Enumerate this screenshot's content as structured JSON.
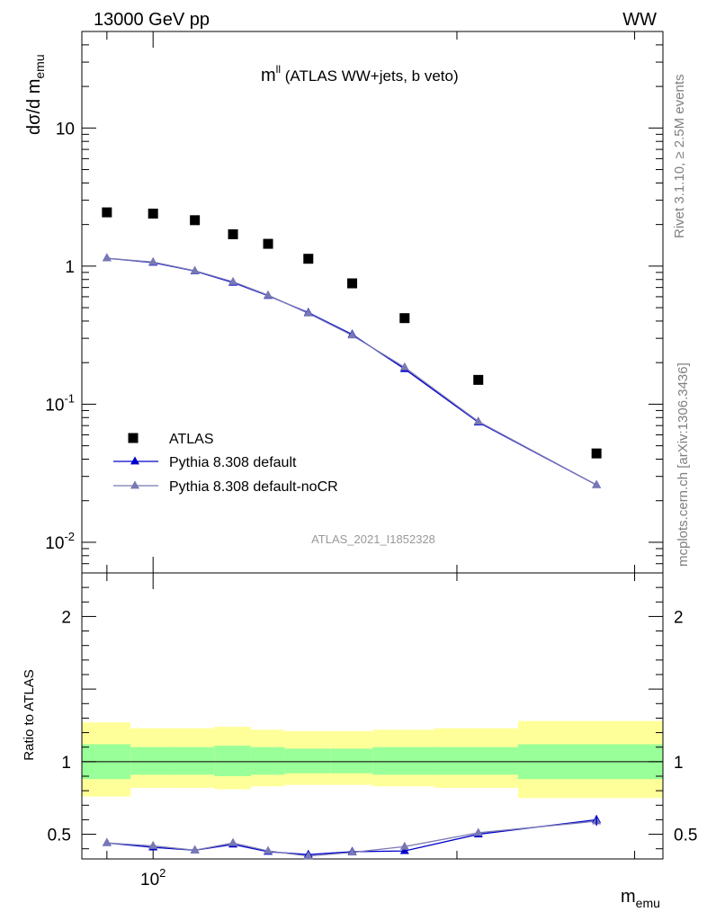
{
  "header": {
    "left": "13000 GeV pp",
    "right": "WW"
  },
  "plot_title": {
    "main": "m",
    "sup": "ll",
    "rest": " (ATLAS WW+jets, b veto)"
  },
  "ylabel": {
    "main": "dσ/d m",
    "sub": "emu"
  },
  "xlabel": {
    "main": "m",
    "sub": "emu"
  },
  "ratio_ylabel": "Ratio to ATLAS",
  "watermark": "ATLAS_2021_I1852328",
  "side_text_top": "Rivet 3.1.10, ≥ 2.5M events",
  "side_text_bottom": "mcplots.cern.ch [arXiv:1306.3436]",
  "legend": [
    {
      "label": "ATLAS"
    },
    {
      "label": "Pythia 8.308 default"
    },
    {
      "label": "Pythia 8.308 default-noCR"
    }
  ],
  "colors": {
    "atlas": "#000000",
    "default": "#0000cc",
    "nocr": "#7878b4",
    "band_inner": "#99ff99",
    "band_outer": "#ffff99"
  },
  "chart_data": {
    "type": "scatter",
    "x_scale": "log",
    "y_scale": "log",
    "xlim": [
      85,
      320
    ],
    "ylim": [
      0.006,
      50
    ],
    "ratio_ylim": [
      0.33,
      2.3
    ],
    "x_tick_labels": [
      "10^2"
    ],
    "y_tick_labels": [
      "10^-2",
      "10^-1",
      "1",
      "10"
    ],
    "ratio_tick_labels": [
      "0.5",
      "1",
      "2"
    ],
    "bins": [
      [
        85,
        95
      ],
      [
        95,
        105
      ],
      [
        105,
        115
      ],
      [
        115,
        125
      ],
      [
        125,
        135
      ],
      [
        135,
        150
      ],
      [
        150,
        165
      ],
      [
        165,
        190
      ],
      [
        190,
        230
      ],
      [
        230,
        320
      ]
    ],
    "x": [
      90,
      100,
      110,
      120,
      130,
      142.5,
      157.5,
      177.5,
      210,
      275
    ],
    "series": [
      {
        "name": "ATLAS",
        "values": [
          2.45,
          2.4,
          2.15,
          1.7,
          1.45,
          1.13,
          0.75,
          0.42,
          0.15,
          0.044
        ]
      },
      {
        "name": "Pythia 8.308 default",
        "values": [
          1.14,
          1.06,
          0.92,
          0.76,
          0.61,
          0.46,
          0.32,
          0.18,
          0.074,
          0.026
        ]
      },
      {
        "name": "Pythia 8.308 default-noCR",
        "values": [
          1.14,
          1.07,
          0.925,
          0.77,
          0.615,
          0.455,
          0.315,
          0.185,
          0.075,
          0.026
        ]
      }
    ],
    "ratio_series": [
      {
        "name": "Pythia 8.308 default",
        "values": [
          0.44,
          0.41,
          0.39,
          0.43,
          0.38,
          0.36,
          0.38,
          0.385,
          0.5,
          0.6
        ]
      },
      {
        "name": "Pythia 8.308 default-noCR",
        "values": [
          0.44,
          0.42,
          0.39,
          0.44,
          0.385,
          0.35,
          0.375,
          0.415,
          0.51,
          0.59
        ]
      }
    ],
    "ratio_band_inner": [
      [
        0.88,
        1.12
      ],
      [
        0.91,
        1.1
      ],
      [
        0.91,
        1.1
      ],
      [
        0.9,
        1.11
      ],
      [
        0.91,
        1.1
      ],
      [
        0.92,
        1.09
      ],
      [
        0.92,
        1.09
      ],
      [
        0.91,
        1.1
      ],
      [
        0.91,
        1.1
      ],
      [
        0.88,
        1.12
      ]
    ],
    "ratio_band_outer": [
      [
        0.76,
        1.27
      ],
      [
        0.82,
        1.23
      ],
      [
        0.82,
        1.23
      ],
      [
        0.81,
        1.24
      ],
      [
        0.83,
        1.22
      ],
      [
        0.84,
        1.21
      ],
      [
        0.84,
        1.21
      ],
      [
        0.83,
        1.22
      ],
      [
        0.82,
        1.23
      ],
      [
        0.75,
        1.28
      ]
    ]
  }
}
